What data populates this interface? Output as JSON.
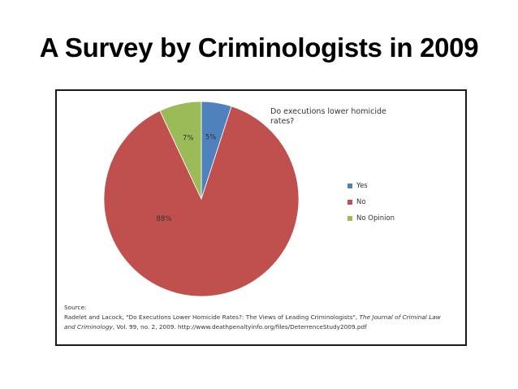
{
  "slide": {
    "title": "A Survey by Criminologists in 2009"
  },
  "chart_data": {
    "type": "pie",
    "title": "Do executions lower homicide rates?",
    "categories": [
      "Yes",
      "No",
      "No Opinion"
    ],
    "values": [
      5,
      88,
      7
    ],
    "data_labels": [
      "5%",
      "88%",
      "7%"
    ],
    "colors": [
      "#4f81bd",
      "#c0504d",
      "#9bbb59"
    ],
    "legend_position": "right",
    "source": {
      "heading": "Source:",
      "line1_prefix": "Radelet and Lacock, \"Do Executions Lower Homicide Rates?: The Views of Leading Criminologists\", ",
      "line1_journal": "The Journal of Criminal Law",
      "line2_journal": "and Criminology",
      "line2_rest": ", Vol. 99, no. 2, 2009.  http://www.deathpenaltyinfo.org/files/DeterrenceStudy2009.pdf"
    }
  }
}
